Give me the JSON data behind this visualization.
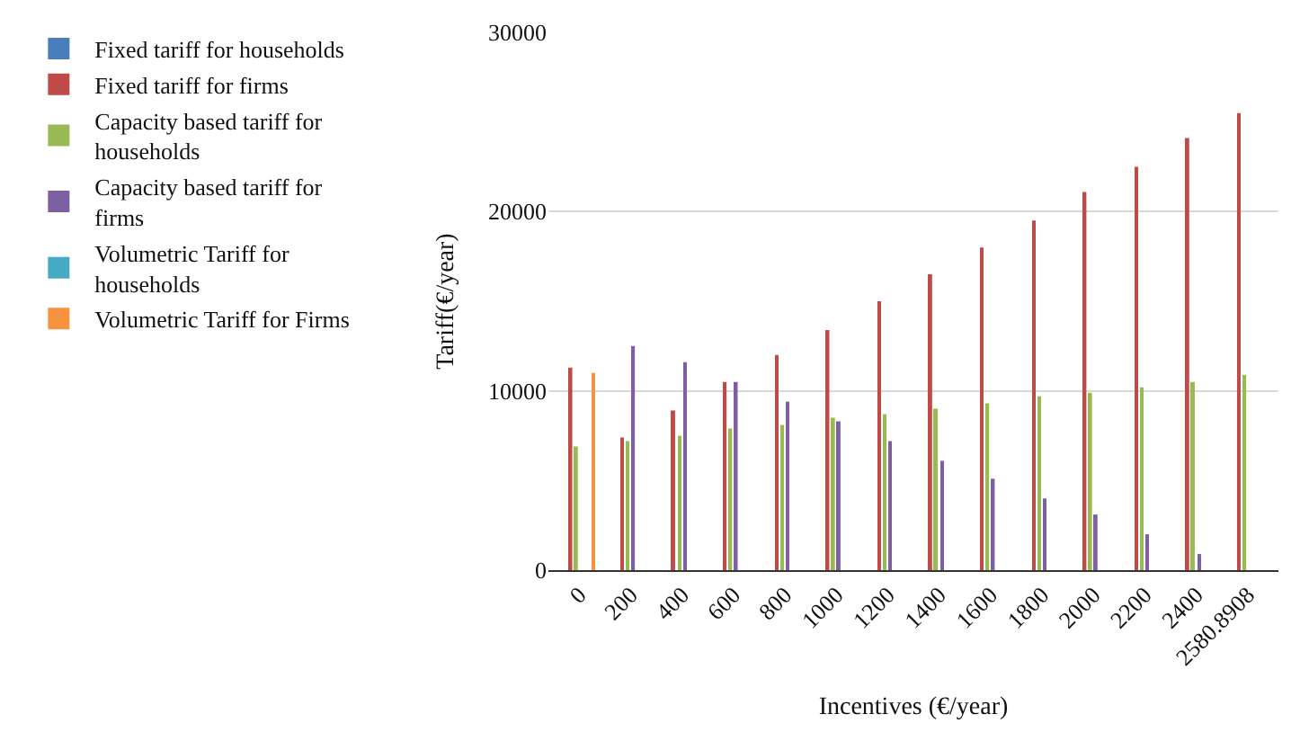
{
  "chart_data": {
    "type": "bar",
    "xlabel": "Incentives (€/year)",
    "ylabel": "Tariff(€/year)",
    "categories": [
      "0",
      "200",
      "400",
      "600",
      "800",
      "1000",
      "1200",
      "1400",
      "1600",
      "1800",
      "2000",
      "2200",
      "2400",
      "2580.8908"
    ],
    "series": [
      {
        "name": "Fixed tariff for households",
        "color": "#4a7ebb",
        "values": [
          null,
          null,
          null,
          null,
          null,
          null,
          null,
          null,
          null,
          null,
          null,
          null,
          null,
          null
        ]
      },
      {
        "name": "Fixed tariff for firms",
        "color": "#be4b48",
        "values": [
          11300,
          7400,
          8900,
          10500,
          12000,
          13400,
          15000,
          16500,
          18000,
          19500,
          21100,
          22500,
          24100,
          25500
        ]
      },
      {
        "name": "Capacity based tariff for households",
        "color": "#98b954",
        "values": [
          6900,
          7200,
          7500,
          7900,
          8100,
          8500,
          8700,
          9000,
          9300,
          9700,
          9900,
          10200,
          10500,
          10900
        ]
      },
      {
        "name": "Capacity based tariff for firms",
        "color": "#7d60a0",
        "values": [
          null,
          12500,
          11600,
          10500,
          9400,
          8300,
          7200,
          6100,
          5100,
          4000,
          3100,
          2000,
          900,
          null
        ]
      },
      {
        "name": "Volumetric Tariff for households",
        "color": "#46aac5",
        "values": [
          null,
          null,
          null,
          null,
          null,
          null,
          null,
          null,
          null,
          null,
          null,
          null,
          null,
          null
        ]
      },
      {
        "name": "Volumetric Tariff for Firms",
        "color": "#f69240",
        "values": [
          11000,
          null,
          null,
          null,
          null,
          null,
          null,
          null,
          null,
          null,
          null,
          null,
          null,
          null
        ]
      }
    ],
    "ylim": [
      0,
      30000
    ],
    "yticks": [
      0,
      10000,
      20000,
      30000
    ],
    "grid": "y",
    "legend": "left"
  }
}
